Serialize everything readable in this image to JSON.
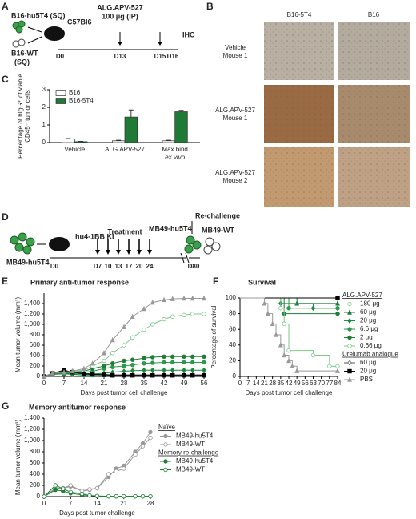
{
  "panel_labels": [
    "A",
    "B",
    "C",
    "D",
    "E",
    "F",
    "G"
  ],
  "panel_a": {
    "tumor_1": "B16-hu5T4 (SQ)",
    "tumor_2": "B16-WT",
    "tumor_2_route": "(SQ)",
    "mouse": "C57Bl6",
    "drug": "ALG.APV-527",
    "dose": "100 μg (IP)",
    "readout": "IHC",
    "timeline": [
      "D0",
      "D13",
      "D15",
      "D16"
    ]
  },
  "panel_b": {
    "columns": [
      "B16-5T4",
      "B16"
    ],
    "rows": [
      [
        "Vehicle",
        "Mouse 1"
      ],
      [
        "ALG.APV-527",
        "Mouse 1"
      ],
      [
        "ALG.APV-527",
        "Mouse 2"
      ]
    ]
  },
  "panel_d": {
    "tumor": "MB49-hu5T4",
    "mouse": "hu4-1BB KI",
    "treatment": "Treatment",
    "rechallenge": "Re-challenge",
    "rechallenge_tumor_1": "MB49-hu5T4",
    "rechallenge_tumor_2": "MB49-WT",
    "timeline": [
      "D0",
      "D7",
      "10",
      "13",
      "17",
      "20",
      "24",
      "D80"
    ]
  },
  "chart_data": [
    {
      "type": "bar",
      "ylabel": [
        "Percentage of hIgG⁺ of viable",
        "CD45⁻ tumor cells"
      ],
      "categories": [
        "Vehicle",
        "ALG.APV-527",
        [
          "Max bind",
          "ex vivo"
        ]
      ],
      "series": [
        {
          "name": "B16",
          "color": "#ffffff",
          "values": [
            0.2,
            0.1,
            0.1
          ],
          "errors": [
            0.03,
            0.03,
            0.03
          ]
        },
        {
          "name": "B16-5T4",
          "color": "#1e7a34",
          "values": [
            0.05,
            1.45,
            1.75
          ],
          "errors": [
            0.02,
            0.4,
            0.08
          ]
        }
      ],
      "ylim": [
        0,
        3
      ],
      "yticks": [
        0,
        1,
        2,
        3
      ],
      "legend": "upper left"
    },
    {
      "type": "line",
      "title": "Primary anti-tumor response",
      "xlabel": "Days post tumor cell challenge",
      "ylabel": "Mean tumor volume (mm³)",
      "x": [
        0,
        3,
        7,
        10,
        14,
        17,
        21,
        24,
        28,
        31,
        35,
        38,
        42,
        45,
        49,
        52,
        56
      ],
      "series": [
        {
          "color": "#8fce8f",
          "marker": "circle-open",
          "values": [
            0,
            40,
            50,
            40,
            20,
            20,
            20,
            20,
            20,
            20,
            20,
            20,
            20,
            20,
            20,
            20,
            20
          ]
        },
        {
          "color": "#1a7a3a",
          "marker": "triangle",
          "values": [
            0,
            40,
            50,
            40,
            30,
            30,
            30,
            30,
            30,
            30,
            30,
            30,
            30,
            30,
            30,
            30,
            30
          ]
        },
        {
          "color": "#1f8a3f",
          "marker": "diamond",
          "values": [
            0,
            50,
            60,
            60,
            50,
            50,
            60,
            80,
            100,
            110,
            120,
            120,
            120,
            120,
            120,
            120,
            120
          ]
        },
        {
          "color": "#2a9a4a",
          "marker": "circle",
          "values": [
            0,
            50,
            70,
            70,
            80,
            100,
            150,
            180,
            200,
            220,
            250,
            260,
            270,
            270,
            270,
            270,
            270
          ]
        },
        {
          "color": "#1e7e34",
          "marker": "circle",
          "values": [
            0,
            50,
            80,
            80,
            100,
            150,
            200,
            250,
            300,
            320,
            350,
            370,
            380,
            380,
            380,
            380,
            380
          ]
        },
        {
          "color": "#7cc98a",
          "marker": "circle-open",
          "values": [
            0,
            60,
            90,
            100,
            120,
            200,
            300,
            450,
            600,
            750,
            900,
            1000,
            1100,
            1150,
            1180,
            1200,
            1200
          ]
        },
        {
          "color": "#555555",
          "marker": "diamond-open",
          "values": [
            0,
            60,
            100,
            80,
            60,
            50,
            40,
            30,
            30,
            30,
            30,
            30,
            30,
            30,
            30,
            30,
            30
          ]
        },
        {
          "color": "#000000",
          "marker": "square",
          "values": [
            0,
            60,
            120,
            80,
            50,
            40,
            30,
            20,
            20,
            20,
            20,
            20,
            20,
            20,
            20,
            20,
            20
          ]
        },
        {
          "color": "#999999",
          "marker": "triangle",
          "values": [
            0,
            60,
            80,
            100,
            150,
            250,
            450,
            700,
            950,
            1150,
            1300,
            1420,
            1470,
            1490,
            1500,
            1500,
            1500
          ]
        }
      ],
      "xlim": [
        0,
        56
      ],
      "xticks": [
        0,
        7,
        14,
        21,
        28,
        35,
        42,
        49,
        56
      ],
      "ylim": [
        0,
        1600
      ],
      "yticks": [
        0,
        200,
        400,
        600,
        800,
        {
          "value": 1000,
          "label": "1,000"
        },
        {
          "value": 1200,
          "label": "1,200"
        },
        {
          "value": 1400,
          "label": "1,400"
        }
      ]
    },
    {
      "type": "line",
      "step": true,
      "title": "Survival",
      "xlabel": "Days post tumor cell challenge",
      "ylabel": "Percentage of survival",
      "series": [
        {
          "legend_heading": "ALG.APV-527",
          "name": "180 μg",
          "color": "#8fce8f",
          "marker": "circle-open",
          "x": [
            0,
            84
          ],
          "values": [
            100,
            100
          ]
        },
        {
          "name": "60 μg",
          "color": "#1a7a3a",
          "marker": "triangle",
          "x": [
            0,
            49,
            84
          ],
          "values": [
            100,
            93,
            93
          ]
        },
        {
          "name": "20 μg",
          "color": "#1f8a3f",
          "marker": "diamond",
          "x": [
            0,
            35,
            63,
            84
          ],
          "values": [
            100,
            93,
            87,
            87
          ]
        },
        {
          "name": "6.6 μg",
          "color": "#2a9a4a",
          "marker": "circle",
          "x": [
            0,
            42,
            84
          ],
          "values": [
            100,
            87,
            87
          ]
        },
        {
          "name": "2 μg",
          "color": "#1e7e34",
          "marker": "circle",
          "x": [
            0,
            38,
            84
          ],
          "values": [
            100,
            80,
            80
          ]
        },
        {
          "name": "0.66 μg",
          "color": "#7cc98a",
          "marker": "circle-open",
          "x": [
            0,
            35,
            38,
            42,
            63,
            77,
            84
          ],
          "values": [
            100,
            87,
            67,
            33,
            27,
            13,
            13
          ]
        },
        {
          "legend_heading": "Urelumab analogue",
          "name": "60 μg",
          "color": "#555555",
          "marker": "diamond-open",
          "x": [
            0,
            84
          ],
          "values": [
            100,
            100
          ]
        },
        {
          "name": "20 μg",
          "color": "#000000",
          "marker": "square",
          "x": [
            0,
            84
          ],
          "values": [
            100,
            100
          ]
        },
        {
          "name": "PBS",
          "color": "#999999",
          "marker": "triangle",
          "x": [
            0,
            21,
            24,
            28,
            31,
            35,
            38,
            42,
            45,
            49,
            84
          ],
          "values": [
            100,
            93,
            80,
            67,
            53,
            40,
            27,
            20,
            13,
            7,
            7
          ]
        }
      ],
      "xlim": [
        0,
        84
      ],
      "xticks": [
        0,
        7,
        14,
        21,
        28,
        35,
        42,
        49,
        56,
        63,
        70,
        77,
        84
      ],
      "ylim": [
        0,
        100
      ],
      "yticks": [
        0,
        20,
        40,
        60,
        80,
        100
      ]
    },
    {
      "type": "line",
      "title": "Memory antitumor response",
      "xlabel": "Days post tumor challenge",
      "ylabel": "Mean tumor volume (mm³)",
      "x": [
        0,
        3,
        5,
        7,
        10,
        12,
        14,
        17,
        19,
        21,
        24,
        26,
        28
      ],
      "series": [
        {
          "legend_heading": "Naïve",
          "name": "MB49-hu5T4",
          "color": "#999999",
          "marker": "circle",
          "values": [
            0,
            150,
            150,
            180,
            100,
            120,
            150,
            350,
            500,
            550,
            800,
            950,
            1150
          ]
        },
        {
          "name": "MB49-WT",
          "color": "#999999",
          "marker": "circle-open",
          "values": [
            0,
            130,
            150,
            200,
            100,
            130,
            150,
            400,
            450,
            500,
            750,
            900,
            1050
          ]
        },
        {
          "legend_heading": "Memory re-challenge",
          "name": "MB49-hu5T4",
          "color": "#1e7e34",
          "marker": "circle",
          "values": [
            0,
            120,
            100,
            60,
            30,
            20,
            10,
            5,
            5,
            5,
            5,
            5,
            5
          ]
        },
        {
          "name": "MB49-WT",
          "color": "#1e7e34",
          "marker": "circle-open",
          "values": [
            0,
            200,
            140,
            80,
            50,
            20,
            10,
            5,
            5,
            5,
            5,
            5,
            5
          ]
        }
      ],
      "xlim": [
        0,
        28
      ],
      "xticks": [
        0,
        7,
        14,
        21,
        28
      ],
      "ylim": [
        0,
        1400
      ],
      "yticks": [
        0,
        200,
        400,
        600,
        800,
        {
          "value": 1000,
          "label": "1,000"
        },
        {
          "value": 1200,
          "label": "1,200"
        },
        {
          "value": 1400,
          "label": "1,400"
        }
      ]
    }
  ]
}
